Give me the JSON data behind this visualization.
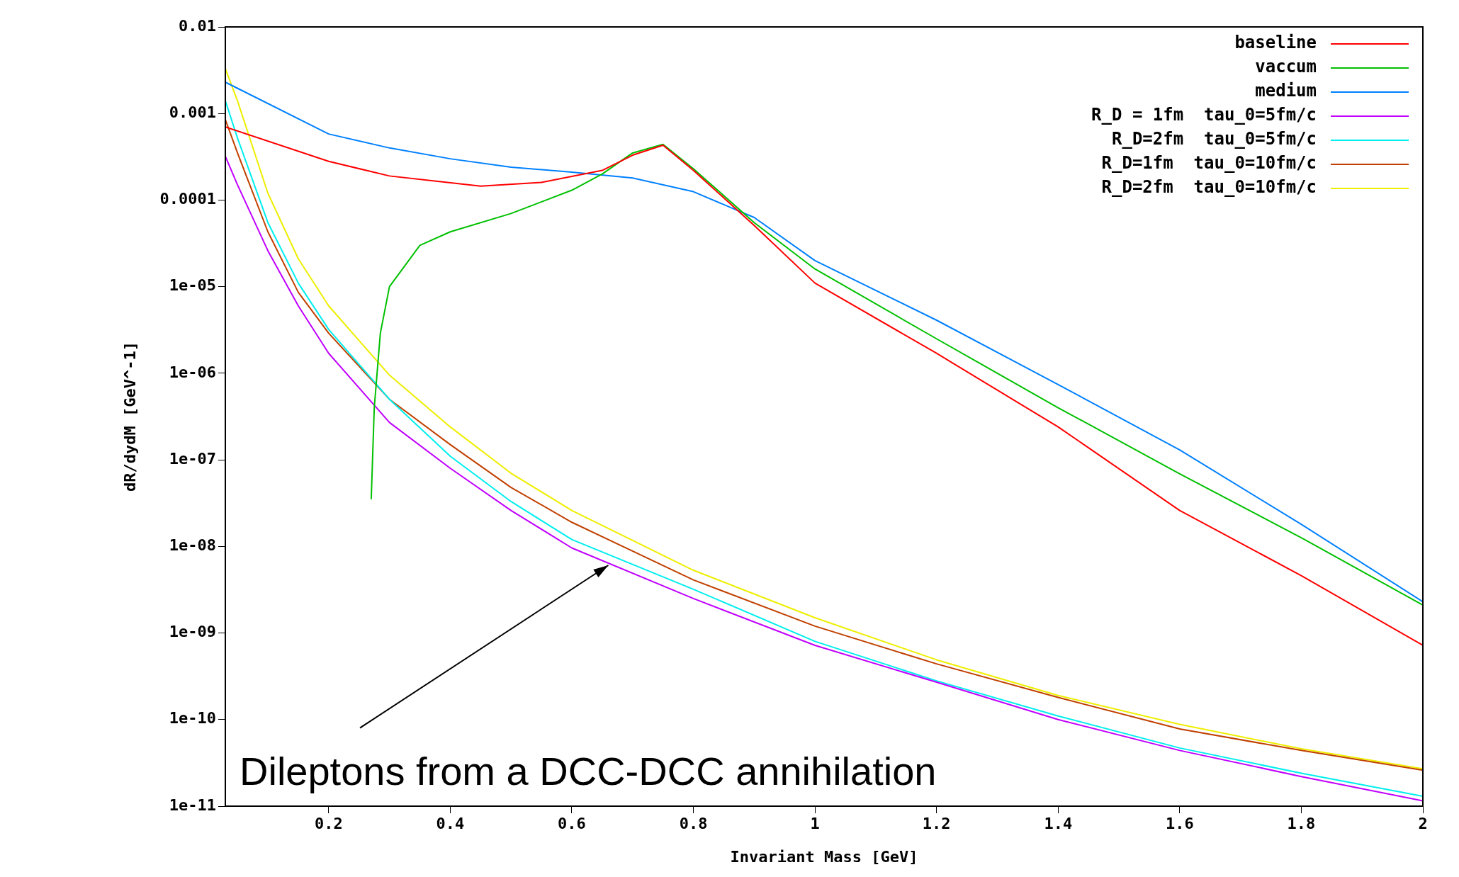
{
  "chart_data": {
    "type": "line",
    "xlabel": "Invariant Mass [GeV]",
    "ylabel": "dR/dydM [GeV^-1]",
    "log": "y",
    "grid": false,
    "legend": "top right",
    "marker": "none",
    "line_style": "solid",
    "xlim": [
      0.03,
      2
    ],
    "xticks": [
      0.2,
      0.4,
      0.6,
      0.8,
      1,
      1.2,
      1.4,
      1.6,
      1.8,
      2
    ],
    "ylim": [
      1e-11,
      0.01
    ],
    "yticks": [
      {
        "value": 1e-11,
        "label": "1e-11"
      },
      {
        "value": 1e-10,
        "label": "1e-10"
      },
      {
        "value": 1e-09,
        "label": "1e-09"
      },
      {
        "value": 1e-08,
        "label": "1e-08"
      },
      {
        "value": 1e-07,
        "label": "1e-07"
      },
      {
        "value": 1e-06,
        "label": "1e-06"
      },
      {
        "value": 1e-05,
        "label": "1e-05"
      },
      0.0001,
      0.001,
      0.01
    ],
    "annotations": [
      {
        "text": "Dileptons from a DCC-DCC annihilation",
        "x": 0.66,
        "y": 6e-09
      }
    ],
    "series": [
      {
        "name": "baseline",
        "color": "#ff0000",
        "x": [
          0.03,
          0.2,
          0.3,
          0.45,
          0.55,
          0.65,
          0.7,
          0.75,
          0.8,
          0.9,
          1.0,
          1.2,
          1.4,
          1.6,
          1.8,
          2.0
        ],
        "values": [
          0.0007,
          0.00028,
          0.00019,
          0.000145,
          0.00016,
          0.00022,
          0.00033,
          0.00043,
          0.00022,
          5.1e-05,
          1.1e-05,
          1.7e-06,
          2.4e-07,
          2.6e-08,
          4.6e-09,
          7.2e-10
        ]
      },
      {
        "name": "vaccum",
        "color": "#00c000",
        "x": [
          0.27,
          0.275,
          0.285,
          0.3,
          0.35,
          0.4,
          0.5,
          0.6,
          0.65,
          0.7,
          0.75,
          0.8,
          0.9,
          1.0,
          1.2,
          1.4,
          1.6,
          1.8,
          2.0
        ],
        "values": [
          3.5e-08,
          4e-07,
          2.9e-06,
          1e-05,
          3e-05,
          4.3e-05,
          7e-05,
          0.00013,
          0.0002,
          0.00035,
          0.00044,
          0.00023,
          5.5e-05,
          1.6e-05,
          2.5e-06,
          4e-07,
          6.9e-08,
          1.26e-08,
          2.1e-09
        ]
      },
      {
        "name": "medium",
        "color": "#0080ff",
        "x": [
          0.03,
          0.2,
          0.3,
          0.4,
          0.5,
          0.6,
          0.7,
          0.8,
          0.9,
          1.0,
          1.2,
          1.4,
          1.6,
          1.8,
          2.0
        ],
        "values": [
          0.0023,
          0.00058,
          0.0004,
          0.0003,
          0.00024,
          0.00021,
          0.00018,
          0.000125,
          6.3e-05,
          2e-05,
          4.1e-06,
          7.4e-07,
          1.3e-07,
          1.8e-08,
          2.3e-09
        ]
      },
      {
        "name": "R_D = 1fm  tau_0=5fm/c",
        "color": "#c000ff",
        "x": [
          0.03,
          0.05,
          0.1,
          0.15,
          0.2,
          0.3,
          0.4,
          0.5,
          0.6,
          0.8,
          1.0,
          1.2,
          1.4,
          1.6,
          1.8,
          2.0
        ],
        "values": [
          0.00032,
          0.00015,
          2.6e-05,
          6e-06,
          1.7e-06,
          2.7e-07,
          8e-08,
          2.6e-08,
          9.6e-09,
          2.5e-09,
          7.2e-10,
          2.7e-10,
          1e-10,
          4.4e-11,
          2.2e-11,
          1.15e-11
        ]
      },
      {
        "name": "R_D=2fm  tau_0=5fm/c",
        "color": "#00eeee",
        "x": [
          0.03,
          0.05,
          0.1,
          0.15,
          0.2,
          0.3,
          0.4,
          0.5,
          0.6,
          0.8,
          1.0,
          1.2,
          1.4,
          1.6,
          1.8,
          2.0
        ],
        "values": [
          0.0014,
          0.00052,
          5.5e-05,
          1.1e-05,
          3.2e-06,
          5e-07,
          1.1e-07,
          3.3e-08,
          1.2e-08,
          3.2e-09,
          8e-10,
          2.8e-10,
          1.1e-10,
          4.7e-11,
          2.4e-11,
          1.3e-11
        ]
      },
      {
        "name": "R_D=1fm  tau_0=10fm/c",
        "color": "#c04000",
        "x": [
          0.03,
          0.05,
          0.1,
          0.15,
          0.2,
          0.3,
          0.4,
          0.5,
          0.6,
          0.8,
          1.0,
          1.2,
          1.4,
          1.6,
          1.8,
          2.0
        ],
        "values": [
          0.00085,
          0.00035,
          4.3e-05,
          8.6e-06,
          2.9e-06,
          5e-07,
          1.5e-07,
          4.8e-08,
          1.9e-08,
          4.1e-09,
          1.2e-09,
          4.4e-10,
          1.8e-10,
          7.8e-11,
          4.4e-11,
          2.6e-11
        ]
      },
      {
        "name": "R_D=2fm  tau_0=10fm/c",
        "color": "#eeee00",
        "x": [
          0.03,
          0.05,
          0.1,
          0.15,
          0.2,
          0.3,
          0.4,
          0.5,
          0.6,
          0.8,
          1.0,
          1.2,
          1.4,
          1.6,
          1.8,
          2.0
        ],
        "values": [
          0.0033,
          0.0014,
          0.00012,
          2.1e-05,
          6e-06,
          9.5e-07,
          2.4e-07,
          7e-08,
          2.6e-08,
          5.3e-09,
          1.5e-09,
          4.9e-10,
          1.9e-10,
          8.8e-11,
          4.6e-11,
          2.7e-11
        ]
      }
    ]
  }
}
